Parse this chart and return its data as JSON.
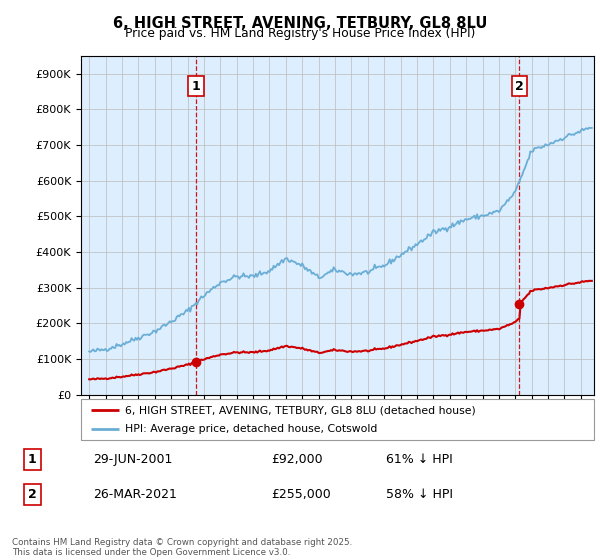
{
  "title": "6, HIGH STREET, AVENING, TETBURY, GL8 8LU",
  "subtitle": "Price paid vs. HM Land Registry's House Price Index (HPI)",
  "legend_property": "6, HIGH STREET, AVENING, TETBURY, GL8 8LU (detached house)",
  "legend_hpi": "HPI: Average price, detached house, Cotswold",
  "footer": "Contains HM Land Registry data © Crown copyright and database right 2025.\nThis data is licensed under the Open Government Licence v3.0.",
  "annotation1_label": "1",
  "annotation1_date": "29-JUN-2001",
  "annotation1_price": "£92,000",
  "annotation1_pct": "61% ↓ HPI",
  "annotation2_label": "2",
  "annotation2_date": "26-MAR-2021",
  "annotation2_price": "£255,000",
  "annotation2_pct": "58% ↓ HPI",
  "sale1_year": 2001.5,
  "sale1_price": 92000,
  "sale2_year": 2021.25,
  "sale2_price": 255000,
  "hpi_color": "#6aaed6",
  "property_color": "#cc0000",
  "vline_color": "#cc0000",
  "chart_bg": "#ddeeff",
  "ylim_min": 0,
  "ylim_max": 950000,
  "xlim_min": 1994.5,
  "xlim_max": 2025.8,
  "hpi_anchors_years": [
    1995,
    1996,
    1997,
    1998,
    1999,
    2000,
    2001,
    2002,
    2003,
    2004,
    2005,
    2006,
    2007,
    2008,
    2009,
    2010,
    2011,
    2012,
    2013,
    2014,
    2015,
    2016,
    2017,
    2018,
    2019,
    2020,
    2021,
    2022,
    2023,
    2024,
    2025.5
  ],
  "hpi_anchors_vals": [
    120000,
    128000,
    142000,
    160000,
    178000,
    205000,
    235000,
    278000,
    315000,
    332000,
    332000,
    348000,
    382000,
    362000,
    328000,
    350000,
    338000,
    344000,
    362000,
    392000,
    422000,
    455000,
    472000,
    492000,
    502000,
    515000,
    568000,
    685000,
    702000,
    722000,
    748000
  ]
}
